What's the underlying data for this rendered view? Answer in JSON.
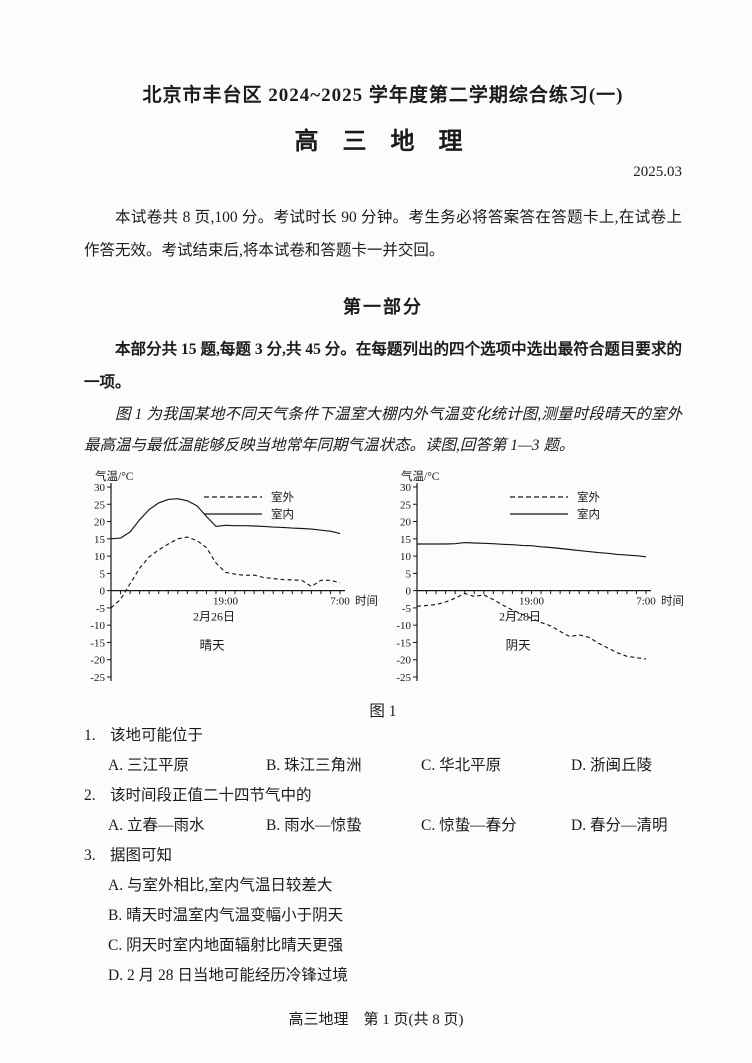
{
  "header": {
    "school_line": "北京市丰台区 2024~2025 学年度第二学期综合练习(一)",
    "subject_title": "高 三 地 理",
    "exam_date": "2025.03"
  },
  "notice": "本试卷共 8 页,100 分。考试时长 90 分钟。考生务必将答案答在答题卡上,在试卷上作答无效。考试结束后,将本试卷和答题卡一并交回。",
  "part1": {
    "heading": "第一部分",
    "instructions": "本部分共 15 题,每题 3 分,共 45 分。在每题列出的四个选项中选出最符合题目要求的一项。",
    "passage": "图 1 为我国某地不同天气条件下温室大棚内外气温变化统计图,测量时段晴天的室外最高温与最低温能够反映当地常年同期气温状态。读图,回答第 1—3 题。",
    "figure_caption": "图 1"
  },
  "chart_data": [
    {
      "type": "line",
      "ylabel": "气温/°C",
      "ylim": [
        -25,
        30
      ],
      "y_tick_step": 5,
      "x_hours": 24,
      "x_mid_label": "19:00",
      "x_end_label": "7:00",
      "x_axis_title": "时间",
      "date_label": "2月26日",
      "weather_label": "晴天",
      "legend_position": "top-right",
      "grid": false,
      "series": [
        {
          "name": "室外",
          "style": "dashed",
          "values": [
            -5,
            -2.5,
            2,
            6.5,
            9.8,
            11.8,
            13.5,
            15,
            15.5,
            14.5,
            12.5,
            8,
            5.3,
            4.8,
            4.4,
            4.5,
            3.8,
            3.5,
            3.2,
            3.1,
            3,
            1.2,
            3,
            3,
            2.3
          ]
        },
        {
          "name": "室内",
          "style": "solid",
          "values": [
            15,
            15.2,
            17,
            20.5,
            23.5,
            25.4,
            26.4,
            26.6,
            26,
            24.6,
            21.5,
            18.6,
            18.9,
            18.8,
            18.8,
            18.7,
            18.6,
            18.4,
            18.3,
            18.1,
            18,
            17.8,
            17.5,
            17.2,
            16.5
          ]
        }
      ]
    },
    {
      "type": "line",
      "ylabel": "气温/°C",
      "ylim": [
        -25,
        30
      ],
      "y_tick_step": 5,
      "x_hours": 24,
      "x_mid_label": "19:00",
      "x_end_label": "7:00",
      "x_axis_title": "时间",
      "date_label": "2月28日",
      "weather_label": "阴天",
      "legend_position": "top-right",
      "grid": false,
      "series": [
        {
          "name": "室外",
          "style": "dashed",
          "values": [
            -4.5,
            -4.3,
            -4,
            -3.3,
            -2.2,
            -0.8,
            -1.7,
            -1.2,
            -2.6,
            -4.2,
            -5.6,
            -6.8,
            -8,
            -9.2,
            -10.2,
            -11.8,
            -13.3,
            -12.8,
            -13.5,
            -15.2,
            -16.6,
            -18,
            -19,
            -19.4,
            -19.8
          ]
        },
        {
          "name": "室内",
          "style": "solid",
          "values": [
            13.5,
            13.5,
            13.5,
            13.5,
            13.6,
            13.9,
            13.8,
            13.7,
            13.6,
            13.4,
            13.3,
            13.1,
            13,
            12.7,
            12.5,
            12.2,
            11.9,
            11.6,
            11.3,
            11,
            10.8,
            10.5,
            10.3,
            10.1,
            9.8
          ]
        }
      ]
    }
  ],
  "questions": [
    {
      "number": "1.",
      "stem": "该地可能位于",
      "options": [
        "A. 三江平原",
        "B. 珠江三角洲",
        "C. 华北平原",
        "D. 浙闽丘陵"
      ]
    },
    {
      "number": "2.",
      "stem": "该时间段正值二十四节气中的",
      "options": [
        "A. 立春—雨水",
        "B. 雨水—惊蛰",
        "C. 惊蛰—春分",
        "D. 春分—清明"
      ]
    },
    {
      "number": "3.",
      "stem": "据图可知",
      "options": [
        "A. 与室外相比,室内气温日较差大",
        "B. 晴天时温室内气温变幅小于阴天",
        "C. 阴天时室内地面辐射比晴天更强",
        "D. 2 月 28 日当地可能经历冷锋过境"
      ]
    }
  ],
  "footer": "高三地理　第 1 页(共 8 页)"
}
